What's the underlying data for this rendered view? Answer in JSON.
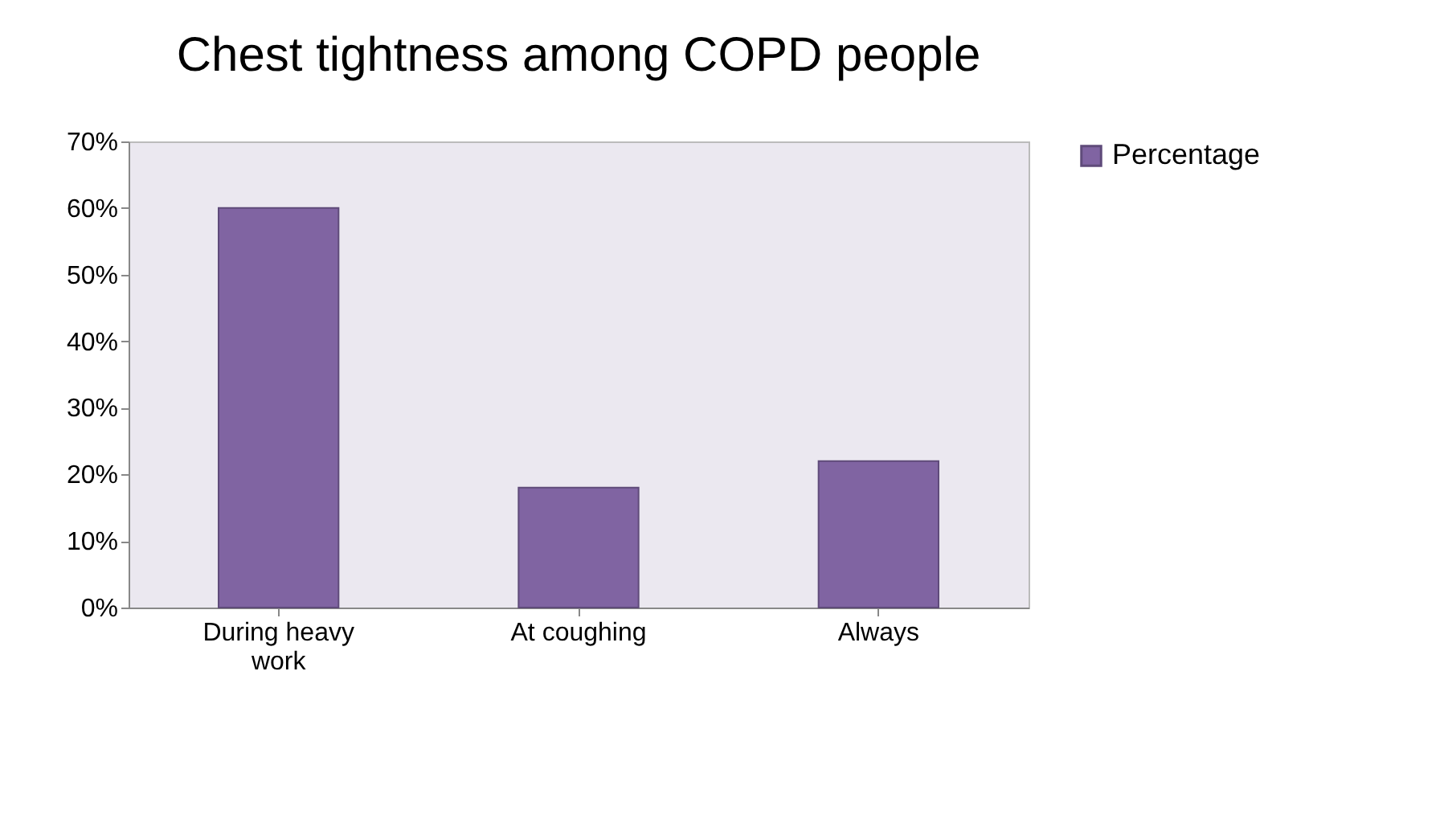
{
  "chart_data": {
    "type": "bar",
    "title": "Chest tightness among COPD people",
    "categories": [
      "During heavy work",
      "At coughing",
      "Always"
    ],
    "series": [
      {
        "name": "Percentage",
        "color": "#8064a2",
        "values": [
          60,
          18,
          22
        ]
      }
    ],
    "ylim": [
      0,
      70
    ],
    "yticks": [
      {
        "value": 0,
        "label": "0%"
      },
      {
        "value": 10,
        "label": "10%"
      },
      {
        "value": 20,
        "label": "20%"
      },
      {
        "value": 30,
        "label": "30%"
      },
      {
        "value": 40,
        "label": "40%"
      },
      {
        "value": 50,
        "label": "50%"
      },
      {
        "value": 60,
        "label": "60%"
      },
      {
        "value": 70,
        "label": "70%"
      }
    ],
    "grid": false,
    "legend": "right"
  }
}
